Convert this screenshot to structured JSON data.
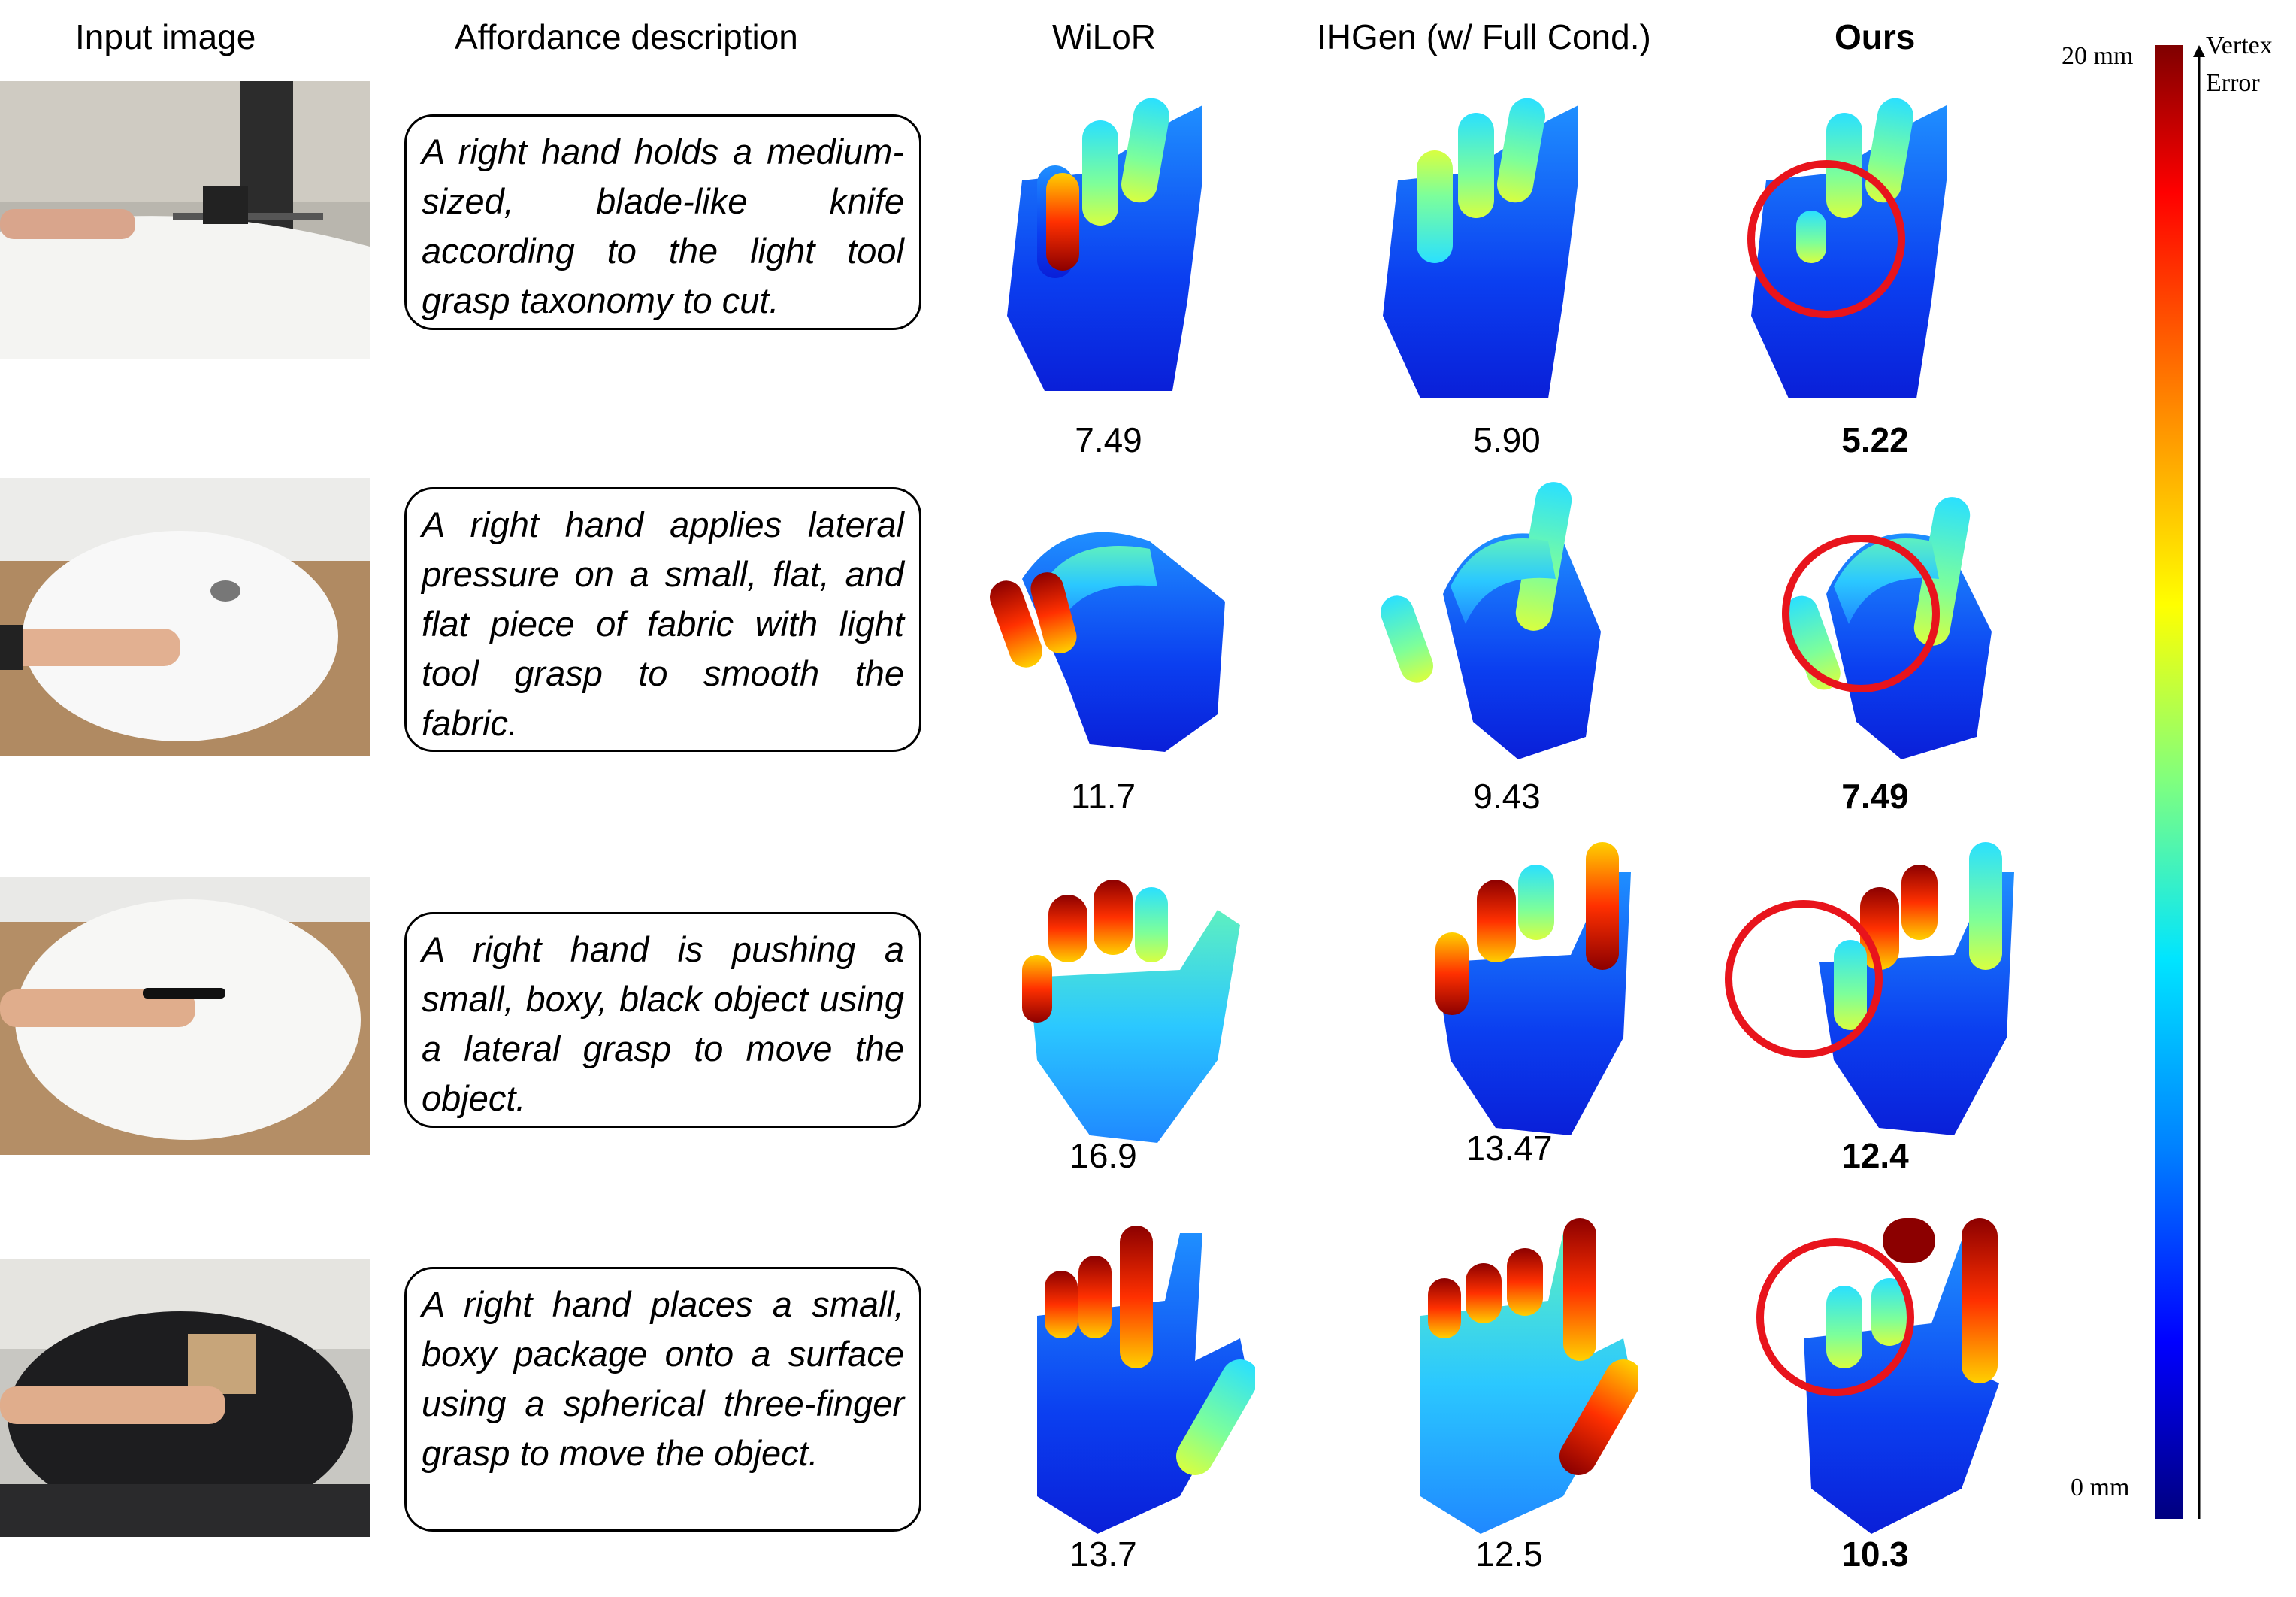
{
  "headers": {
    "input": "Input image",
    "affordance": "Affordance description",
    "wilor": "WiLoR",
    "ihgen": "IHGen (w/ Full Cond.)",
    "ours": "Ours"
  },
  "rows": [
    {
      "description": "A right hand holds a medium-sized, blade-like knife according to the light tool grasp taxonomy to cut.",
      "scores": {
        "wilor": "7.49",
        "ihgen": "5.90",
        "ours": "5.22"
      }
    },
    {
      "description": "A right hand applies lateral pressure on a small, flat, and flat piece of fabric with light tool grasp to smooth the fabric.",
      "scores": {
        "wilor": "11.7",
        "ihgen": "9.43",
        "ours": "7.49"
      }
    },
    {
      "description": "A right hand is pushing a small, boxy, black object using a lateral grasp to move the object.",
      "scores": {
        "wilor": "16.9",
        "ihgen": "13.47",
        "ours": "12.4"
      }
    },
    {
      "description": "A right hand places a small, boxy package onto a surface using a spherical three-finger grasp to move the object.",
      "scores": {
        "wilor": "13.7",
        "ihgen": "12.5",
        "ours": "10.3"
      }
    }
  ],
  "colorbar": {
    "max_label": "20 mm",
    "min_label": "0 mm",
    "axis_label_line1": "Vertex",
    "axis_label_line2": "Error",
    "colors": [
      "#7f0000",
      "#ff0000",
      "#ff8c00",
      "#ffff00",
      "#7fff7f",
      "#00e5ff",
      "#0080ff",
      "#0000ff",
      "#00007f"
    ]
  },
  "highlight_color": "#e8141c"
}
